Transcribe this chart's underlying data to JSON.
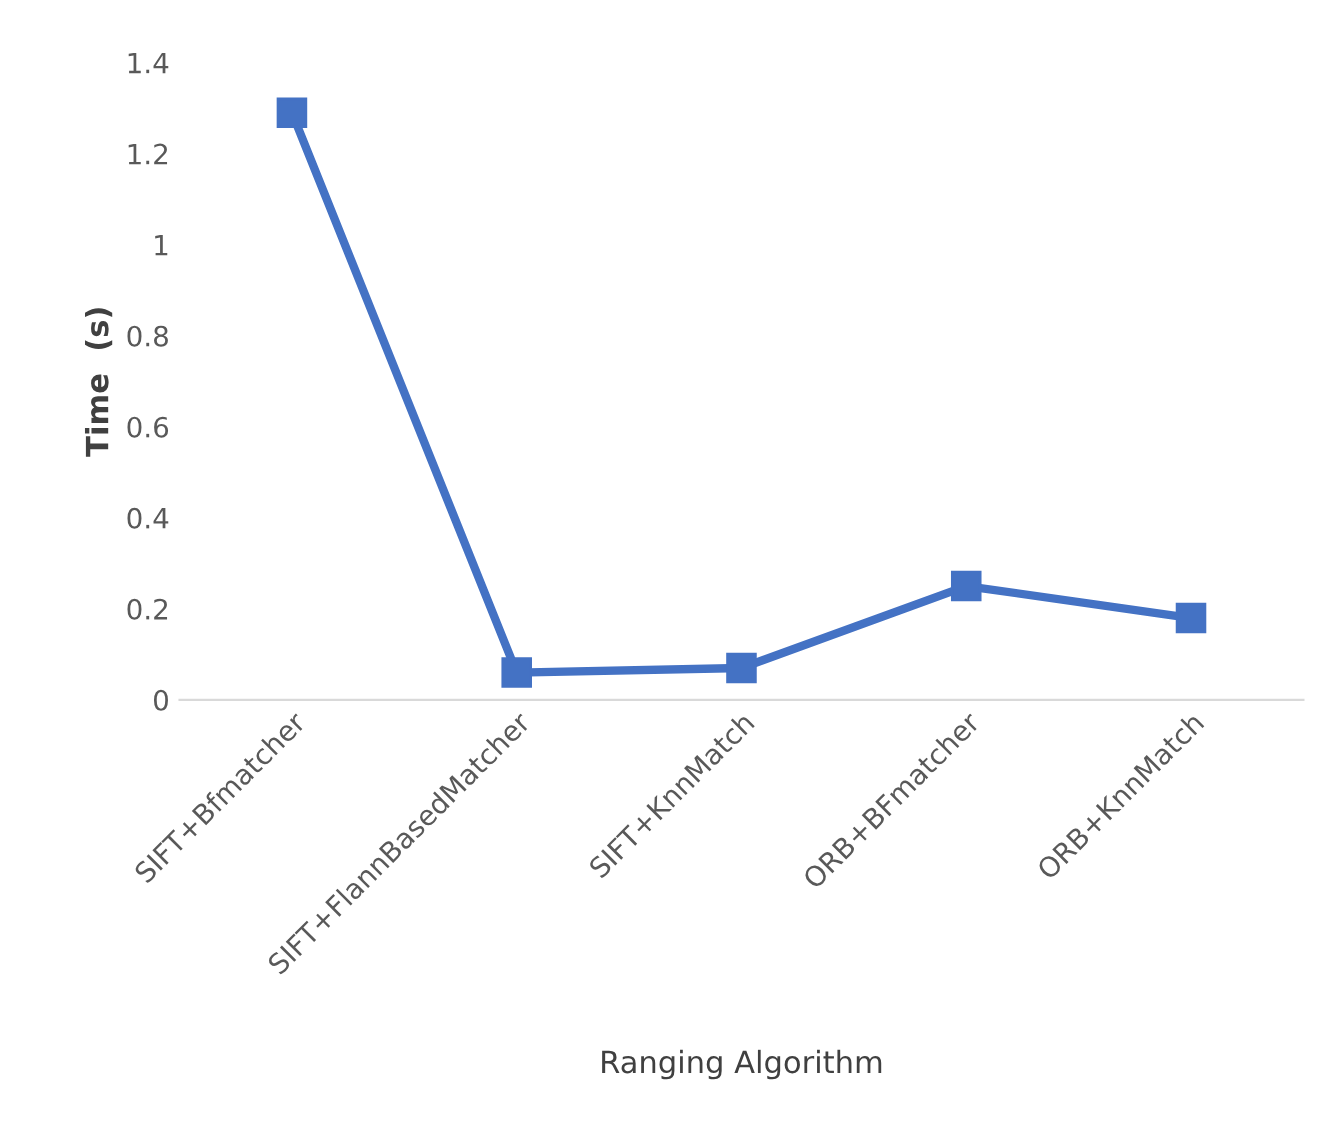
{
  "chart_data": {
    "type": "line",
    "xlabel": "Ranging Algorithm",
    "ylabel": "Time  (s)",
    "categories": [
      "SIFT+Bfmatcher",
      "SIFT+FlannBasedMatcher",
      "SIFT+KnnMatch",
      "ORB+BFmatcher",
      "ORB+KnnMatch"
    ],
    "series": [
      {
        "color": "#4472c4",
        "values": [
          1.29,
          0.06,
          0.07,
          0.25,
          0.18
        ]
      }
    ],
    "ylim": [
      0,
      1.4
    ],
    "yticks": [
      0,
      0.2,
      0.4,
      0.6,
      0.8,
      1,
      1.2,
      1.4
    ],
    "grid": false,
    "legend": false,
    "marker": "square",
    "line_style": "solid"
  }
}
